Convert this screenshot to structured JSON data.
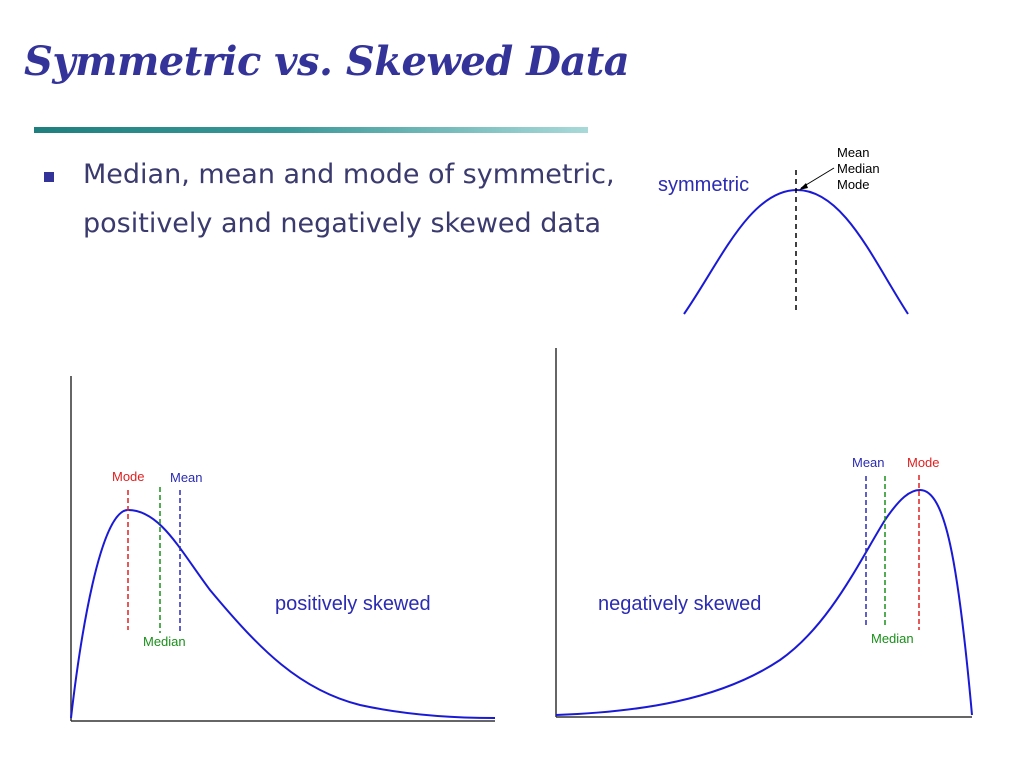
{
  "slide": {
    "title": "Symmetric vs. Skewed Data",
    "bullet": "Median, mean and mode of symmetric, positively and negatively skewed data"
  },
  "symmetric": {
    "caption": "symmetric",
    "labels": [
      "Mean",
      "Median",
      "Mode"
    ]
  },
  "positive": {
    "caption": "positively skewed",
    "mode_label": "Mode",
    "mean_label": "Mean",
    "median_label": "Median"
  },
  "negative": {
    "caption": "negatively skewed",
    "mode_label": "Mode",
    "mean_label": "Mean",
    "median_label": "Median"
  },
  "colors": {
    "title": "#333399",
    "curve": "#1a1ad6",
    "mode": "#e02020",
    "median": "#1a8f1a",
    "mean": "#2b2bb3"
  }
}
